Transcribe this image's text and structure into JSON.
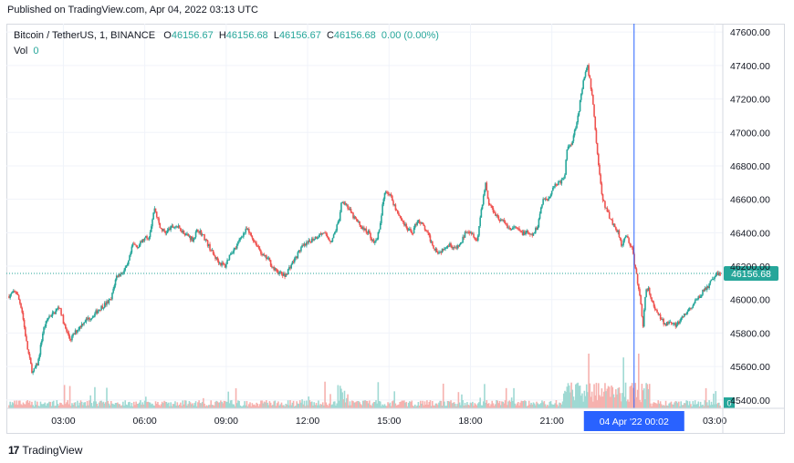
{
  "header": {
    "published_text": "Published on TradingView.com, Apr 04, 2022 03:13 UTC"
  },
  "legend": {
    "symbol": "Bitcoin / TetherUS, 1, BINANCE",
    "open_label": "O",
    "open_value": "46156.67",
    "high_label": "H",
    "high_value": "46156.68",
    "low_label": "L",
    "low_value": "46156.67",
    "close_label": "C",
    "close_value": "46156.68",
    "change_value": "0.00 (0.00%)",
    "vol_label": "Vol",
    "vol_value": "0"
  },
  "footer": {
    "logo_glyph": "17",
    "brand": "TradingView"
  },
  "colors": {
    "up": "#26a69a",
    "down": "#ef5350",
    "volume_up": "#9fd9d3",
    "volume_down": "#f6b1ae",
    "crosshair": "#2962ff",
    "price_label_bg": "#26a69a",
    "time_label_bg": "#2962ff",
    "grid": "#f0f3fa"
  },
  "chart_data": {
    "type": "candlestick",
    "title": "Bitcoin / TetherUS, 1, BINANCE",
    "x_tick_labels": [
      "03:00",
      "06:00",
      "09:00",
      "12:00",
      "15:00",
      "18:00",
      "21:00",
      "03:00"
    ],
    "x_ticks_hours": [
      3,
      6,
      9,
      12,
      15,
      18,
      21,
      27
    ],
    "y_tick_labels": [
      "47600.00",
      "47400.00",
      "47200.00",
      "47000.00",
      "46800.00",
      "46600.00",
      "46400.00",
      "46200.00",
      "46000.00",
      "45800.00",
      "45600.00",
      "45400.00"
    ],
    "ylim": [
      45350,
      47650
    ],
    "xlim_hours": [
      0.9,
      27.3
    ],
    "current_price_label": "46156.68",
    "current_price": 46156.68,
    "crosshair_label": "04 Apr '22   00:02",
    "crosshair_hour": 24.03,
    "volume_axis_label": "0",
    "grid": true,
    "price_path": [
      [
        1.0,
        46020
      ],
      [
        1.3,
        46050
      ],
      [
        1.5,
        45950
      ],
      [
        1.7,
        45720
      ],
      [
        1.9,
        45560
      ],
      [
        2.1,
        45620
      ],
      [
        2.3,
        45820
      ],
      [
        2.5,
        45900
      ],
      [
        2.7,
        45920
      ],
      [
        2.9,
        45960
      ],
      [
        3.1,
        45830
      ],
      [
        3.3,
        45760
      ],
      [
        3.5,
        45810
      ],
      [
        3.8,
        45870
      ],
      [
        4.1,
        45900
      ],
      [
        4.4,
        45950
      ],
      [
        4.8,
        46000
      ],
      [
        4.9,
        46080
      ],
      [
        5.0,
        46140
      ],
      [
        5.2,
        46160
      ],
      [
        5.4,
        46200
      ],
      [
        5.6,
        46330
      ],
      [
        5.8,
        46320
      ],
      [
        6.0,
        46360
      ],
      [
        6.2,
        46380
      ],
      [
        6.4,
        46550
      ],
      [
        6.6,
        46430
      ],
      [
        6.8,
        46400
      ],
      [
        7.0,
        46430
      ],
      [
        7.2,
        46440
      ],
      [
        7.5,
        46400
      ],
      [
        7.8,
        46360
      ],
      [
        8.0,
        46420
      ],
      [
        8.2,
        46380
      ],
      [
        8.4,
        46320
      ],
      [
        8.6,
        46260
      ],
      [
        8.8,
        46220
      ],
      [
        9.0,
        46200
      ],
      [
        9.2,
        46280
      ],
      [
        9.4,
        46310
      ],
      [
        9.6,
        46380
      ],
      [
        9.8,
        46420
      ],
      [
        10.0,
        46370
      ],
      [
        10.2,
        46320
      ],
      [
        10.4,
        46260
      ],
      [
        10.6,
        46240
      ],
      [
        10.8,
        46180
      ],
      [
        11.0,
        46160
      ],
      [
        11.2,
        46140
      ],
      [
        11.4,
        46200
      ],
      [
        11.6,
        46250
      ],
      [
        11.8,
        46310
      ],
      [
        12.0,
        46330
      ],
      [
        12.2,
        46360
      ],
      [
        12.4,
        46380
      ],
      [
        12.6,
        46400
      ],
      [
        12.9,
        46350
      ],
      [
        13.0,
        46380
      ],
      [
        13.2,
        46480
      ],
      [
        13.3,
        46600
      ],
      [
        13.5,
        46560
      ],
      [
        13.7,
        46500
      ],
      [
        13.9,
        46460
      ],
      [
        14.1,
        46420
      ],
      [
        14.3,
        46400
      ],
      [
        14.5,
        46330
      ],
      [
        14.7,
        46420
      ],
      [
        14.8,
        46560
      ],
      [
        14.9,
        46660
      ],
      [
        15.1,
        46620
      ],
      [
        15.3,
        46540
      ],
      [
        15.5,
        46480
      ],
      [
        15.7,
        46420
      ],
      [
        15.9,
        46400
      ],
      [
        16.1,
        46480
      ],
      [
        16.3,
        46440
      ],
      [
        16.5,
        46380
      ],
      [
        16.7,
        46310
      ],
      [
        16.9,
        46280
      ],
      [
        17.1,
        46320
      ],
      [
        17.3,
        46330
      ],
      [
        17.5,
        46300
      ],
      [
        17.7,
        46340
      ],
      [
        17.9,
        46420
      ],
      [
        18.1,
        46400
      ],
      [
        18.3,
        46350
      ],
      [
        18.4,
        46500
      ],
      [
        18.5,
        46600
      ],
      [
        18.6,
        46700
      ],
      [
        18.7,
        46580
      ],
      [
        18.9,
        46530
      ],
      [
        19.1,
        46480
      ],
      [
        19.3,
        46460
      ],
      [
        19.5,
        46420
      ],
      [
        19.7,
        46430
      ],
      [
        19.9,
        46400
      ],
      [
        20.1,
        46400
      ],
      [
        20.3,
        46380
      ],
      [
        20.5,
        46430
      ],
      [
        20.7,
        46600
      ],
      [
        20.9,
        46600
      ],
      [
        21.1,
        46680
      ],
      [
        21.3,
        46700
      ],
      [
        21.5,
        46720
      ],
      [
        21.6,
        46900
      ],
      [
        21.8,
        46950
      ],
      [
        22.0,
        47100
      ],
      [
        22.2,
        47300
      ],
      [
        22.35,
        47400
      ],
      [
        22.5,
        47250
      ],
      [
        22.6,
        47100
      ],
      [
        22.7,
        46900
      ],
      [
        22.8,
        46750
      ],
      [
        22.9,
        46600
      ],
      [
        23.1,
        46520
      ],
      [
        23.3,
        46450
      ],
      [
        23.5,
        46400
      ],
      [
        23.6,
        46330
      ],
      [
        23.8,
        46380
      ],
      [
        24.0,
        46300
      ],
      [
        24.1,
        46200
      ],
      [
        24.2,
        46100
      ],
      [
        24.3,
        46000
      ],
      [
        24.4,
        45850
      ],
      [
        24.5,
        46050
      ],
      [
        24.6,
        46060
      ],
      [
        24.8,
        45950
      ],
      [
        25.0,
        45900
      ],
      [
        25.2,
        45850
      ],
      [
        25.4,
        45880
      ],
      [
        25.6,
        45840
      ],
      [
        25.8,
        45880
      ],
      [
        26.0,
        45920
      ],
      [
        26.2,
        45960
      ],
      [
        26.4,
        46000
      ],
      [
        26.6,
        46050
      ],
      [
        26.8,
        46080
      ],
      [
        27.0,
        46130
      ],
      [
        27.2,
        46157
      ]
    ]
  }
}
